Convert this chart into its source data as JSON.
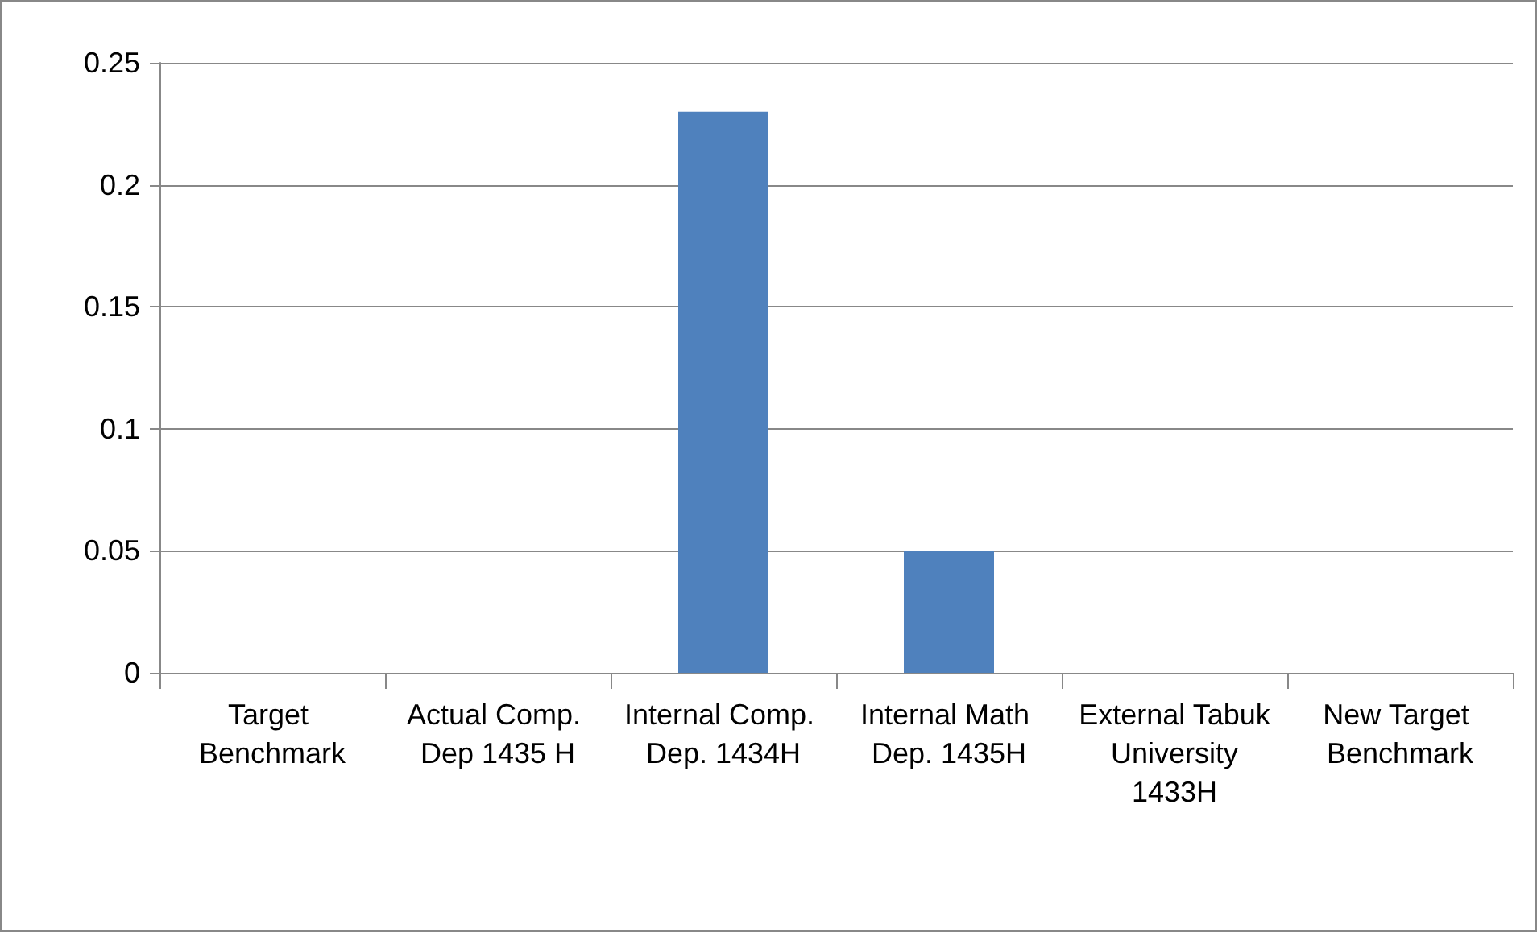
{
  "chart_data": {
    "type": "bar",
    "categories": [
      "Target Benchmark",
      "Actual Comp. Dep 1435 H",
      "Internal Comp. Dep. 1434H",
      "Internal Math Dep. 1435H",
      "External Tabuk University 1433H",
      "New Target Benchmark"
    ],
    "values": [
      0,
      0,
      0.23,
      0.05,
      0,
      0
    ],
    "color": "#4f81bd",
    "ylim": [
      0,
      0.25
    ],
    "yticks": [
      0,
      0.05,
      0.1,
      0.15,
      0.2,
      0.25
    ],
    "grid": "y"
  }
}
